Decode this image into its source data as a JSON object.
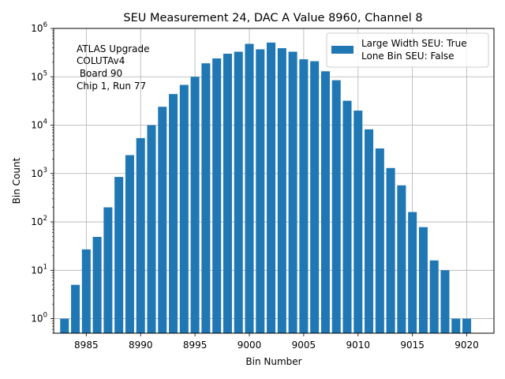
{
  "chart_data": {
    "type": "bar",
    "title": "SEU Measurement 24, DAC A Value 8960, Channel 8",
    "xlabel": "Bin Number",
    "ylabel": "Bin Count",
    "yscale": "log",
    "xlim": [
      8982,
      9022.5
    ],
    "ylim": [
      0.5,
      1000000
    ],
    "grid": true,
    "x_ticks": [
      8985,
      8990,
      8995,
      9000,
      9005,
      9010,
      9015,
      9020
    ],
    "y_ticks": [
      {
        "value": 1,
        "base": "10",
        "exp": "0"
      },
      {
        "value": 10,
        "base": "10",
        "exp": "1"
      },
      {
        "value": 100,
        "base": "10",
        "exp": "2"
      },
      {
        "value": 1000,
        "base": "10",
        "exp": "3"
      },
      {
        "value": 10000,
        "base": "10",
        "exp": "4"
      },
      {
        "value": 100000,
        "base": "10",
        "exp": "5"
      },
      {
        "value": 1000000,
        "base": "10",
        "exp": "6"
      }
    ],
    "bar_color": "#1f77b4",
    "series": [
      {
        "name": "Large Width SEU: True",
        "x": [
          8983,
          8984,
          8985,
          8986,
          8987,
          8988,
          8989,
          8990,
          8991,
          8992,
          8993,
          8994,
          8995,
          8996,
          8997,
          8998,
          8999,
          9000,
          9001,
          9002,
          9003,
          9004,
          9005,
          9006,
          9007,
          9008,
          9009,
          9010,
          9011,
          9012,
          9013,
          9014,
          9015,
          9016,
          9017,
          9018,
          9019,
          9020
        ],
        "values": [
          1,
          5,
          27,
          49,
          200,
          850,
          2400,
          5400,
          10000,
          24000,
          44000,
          68000,
          100000,
          190000,
          240000,
          300000,
          330000,
          480000,
          370000,
          510000,
          390000,
          330000,
          230000,
          210000,
          130000,
          85000,
          32000,
          20000,
          8200,
          3300,
          1300,
          570,
          160,
          78,
          16,
          10,
          1,
          1
        ]
      }
    ],
    "legend": {
      "position": "top-right",
      "entries": [
        "Large Width SEU: True",
        "Lone Bin SEU: False"
      ]
    },
    "annotation": {
      "position": "top-left",
      "lines": [
        "ATLAS Upgrade",
        "COLUTAv4",
        " Board 90",
        "Chip 1, Run 77"
      ]
    }
  }
}
